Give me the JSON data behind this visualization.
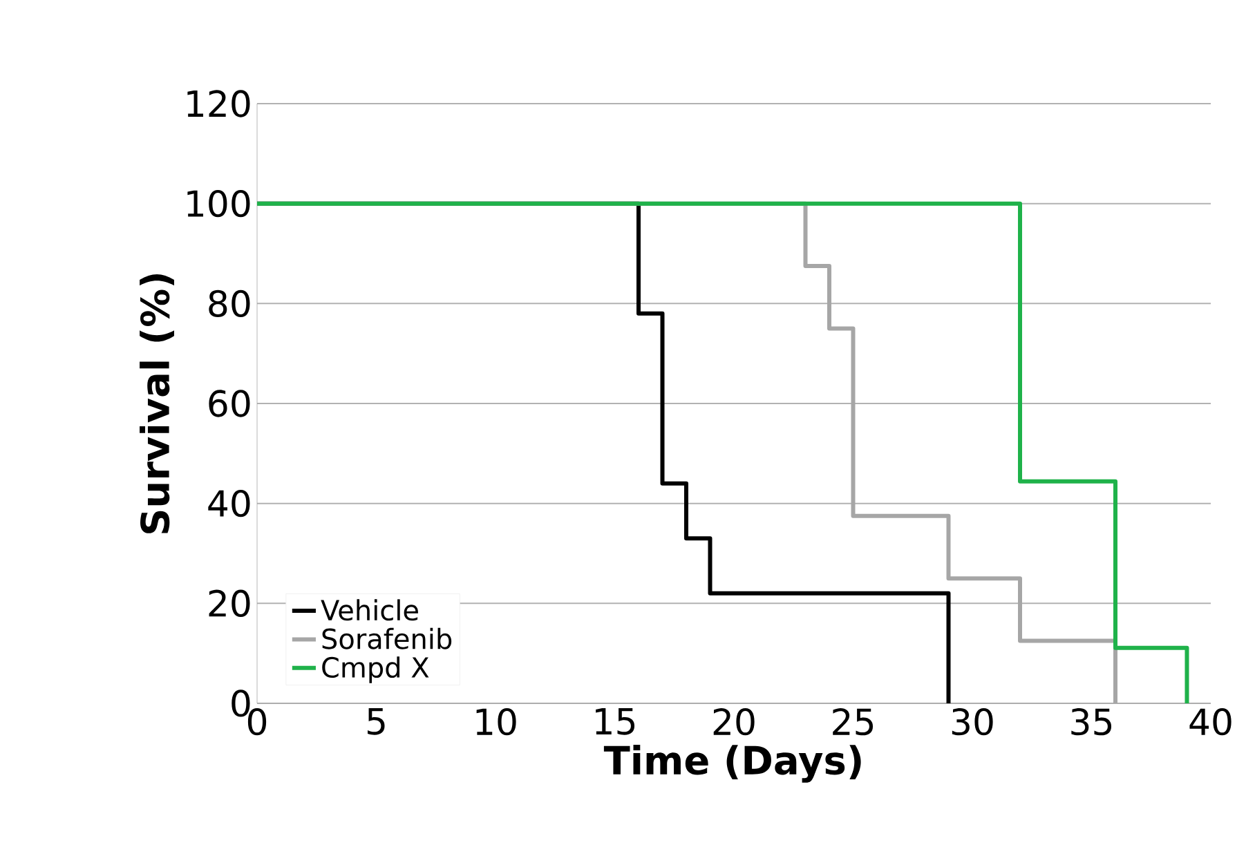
{
  "chart_data": {
    "type": "step",
    "xlabel": "Time (Days)",
    "ylabel": "Survival (%)",
    "series": [
      {
        "name": "Vehicle",
        "color": "#000000",
        "x": [
          0,
          16,
          17,
          18,
          19,
          29
        ],
        "values": [
          100,
          78,
          44,
          33,
          22,
          0
        ]
      },
      {
        "name": "Sorafenib",
        "color": "#a6a6a6",
        "x": [
          0,
          23,
          24,
          25,
          29,
          32,
          36
        ],
        "values": [
          100,
          87.5,
          75,
          37.5,
          25,
          12.5,
          0
        ]
      },
      {
        "name": "Cmpd X",
        "color": "#1fb24a",
        "x": [
          0,
          32,
          36,
          39
        ],
        "values": [
          100,
          44.4,
          11.1,
          0
        ]
      }
    ],
    "xlim": [
      0,
      40
    ],
    "ylim": [
      0,
      120
    ],
    "xticks": [
      0,
      5,
      10,
      15,
      20,
      25,
      30,
      35,
      40
    ],
    "yticks": [
      0,
      20,
      40,
      60,
      80,
      100,
      120
    ],
    "grid": "y",
    "legend": "bottom left",
    "line_style": "solid",
    "marker": "none"
  }
}
